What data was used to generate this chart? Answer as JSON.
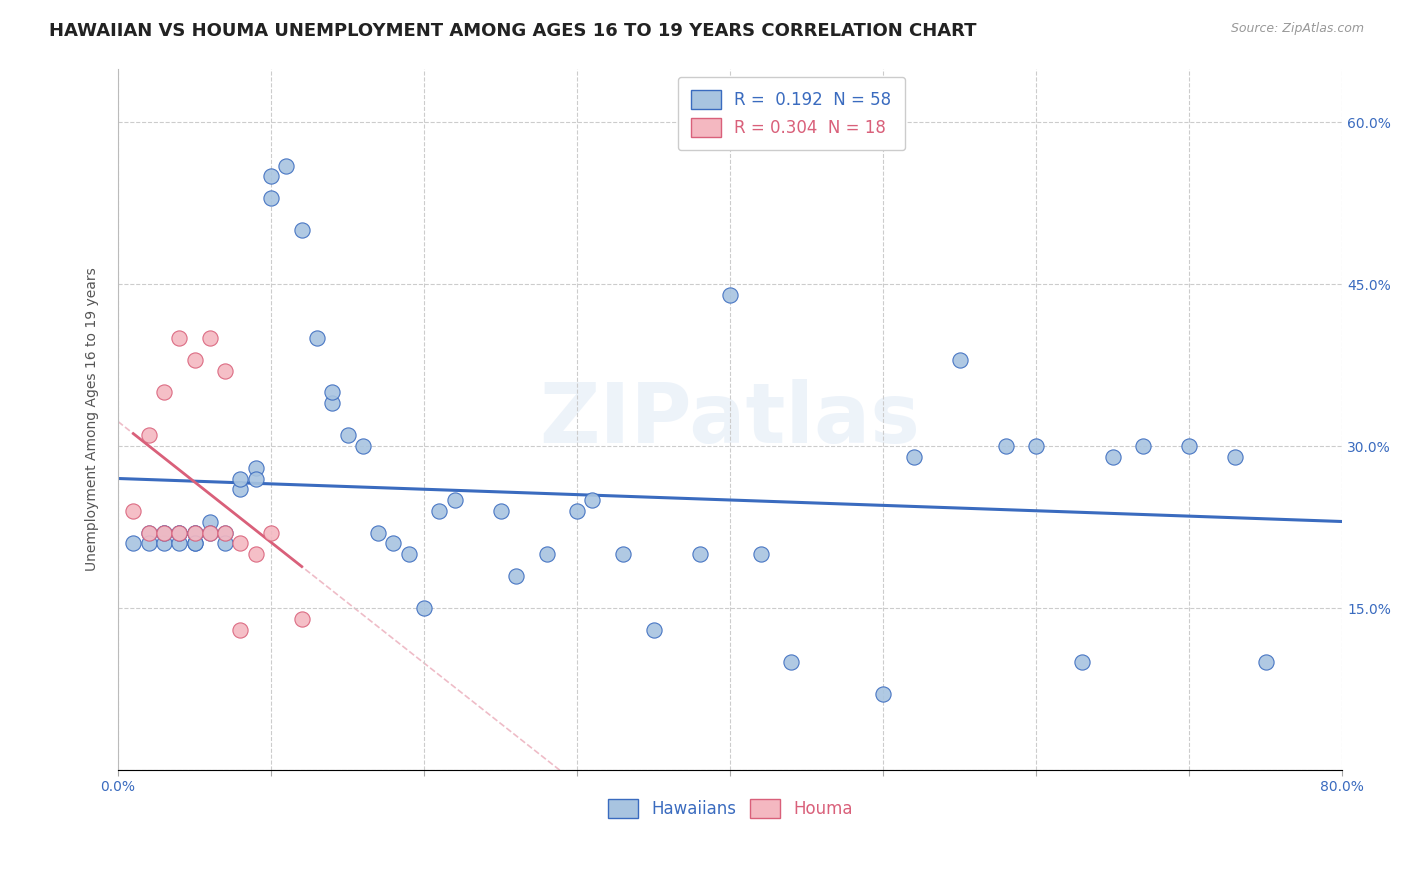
{
  "title": "HAWAIIAN VS HOUMA UNEMPLOYMENT AMONG AGES 16 TO 19 YEARS CORRELATION CHART",
  "source": "Source: ZipAtlas.com",
  "ylabel": "Unemployment Among Ages 16 to 19 years",
  "xlim": [
    0.0,
    0.8
  ],
  "ylim": [
    0.0,
    0.65
  ],
  "x_ticks": [
    0.0,
    0.1,
    0.2,
    0.3,
    0.4,
    0.5,
    0.6,
    0.7,
    0.8
  ],
  "y_ticks": [
    0.0,
    0.15,
    0.3,
    0.45,
    0.6
  ],
  "hawaiians_x": [
    0.01,
    0.02,
    0.02,
    0.03,
    0.03,
    0.03,
    0.04,
    0.04,
    0.04,
    0.05,
    0.05,
    0.05,
    0.05,
    0.06,
    0.06,
    0.07,
    0.07,
    0.08,
    0.08,
    0.09,
    0.09,
    0.1,
    0.1,
    0.11,
    0.12,
    0.13,
    0.14,
    0.14,
    0.15,
    0.16,
    0.17,
    0.18,
    0.19,
    0.2,
    0.21,
    0.22,
    0.25,
    0.26,
    0.28,
    0.3,
    0.31,
    0.33,
    0.35,
    0.38,
    0.4,
    0.42,
    0.44,
    0.5,
    0.52,
    0.55,
    0.58,
    0.6,
    0.63,
    0.65,
    0.67,
    0.7,
    0.73,
    0.75
  ],
  "hawaiians_y": [
    0.21,
    0.22,
    0.21,
    0.22,
    0.21,
    0.22,
    0.22,
    0.21,
    0.22,
    0.22,
    0.21,
    0.22,
    0.21,
    0.23,
    0.22,
    0.22,
    0.21,
    0.26,
    0.27,
    0.28,
    0.27,
    0.53,
    0.55,
    0.56,
    0.5,
    0.4,
    0.34,
    0.35,
    0.31,
    0.3,
    0.22,
    0.21,
    0.2,
    0.15,
    0.24,
    0.25,
    0.24,
    0.18,
    0.2,
    0.24,
    0.25,
    0.2,
    0.13,
    0.2,
    0.44,
    0.2,
    0.1,
    0.07,
    0.29,
    0.38,
    0.3,
    0.3,
    0.1,
    0.29,
    0.3,
    0.3,
    0.29,
    0.1
  ],
  "houma_x": [
    0.01,
    0.02,
    0.02,
    0.03,
    0.03,
    0.04,
    0.04,
    0.05,
    0.05,
    0.06,
    0.06,
    0.07,
    0.07,
    0.08,
    0.08,
    0.09,
    0.1,
    0.12
  ],
  "houma_y": [
    0.24,
    0.31,
    0.22,
    0.35,
    0.22,
    0.4,
    0.22,
    0.38,
    0.22,
    0.4,
    0.22,
    0.37,
    0.22,
    0.21,
    0.13,
    0.2,
    0.22,
    0.14
  ],
  "hawaiians_color": "#a8c4e0",
  "houma_color": "#f4b8c1",
  "hawaiians_trend_color": "#3a6bbf",
  "houma_trend_color": "#d9607a",
  "houma_trend_dashed_color": "#e8a0b0",
  "hawaiians_R": 0.192,
  "hawaiians_N": 58,
  "houma_R": 0.304,
  "houma_N": 18,
  "watermark": "ZIPatlas",
  "title_fontsize": 13,
  "axis_label_fontsize": 10,
  "tick_fontsize": 10,
  "legend_fontsize": 12
}
